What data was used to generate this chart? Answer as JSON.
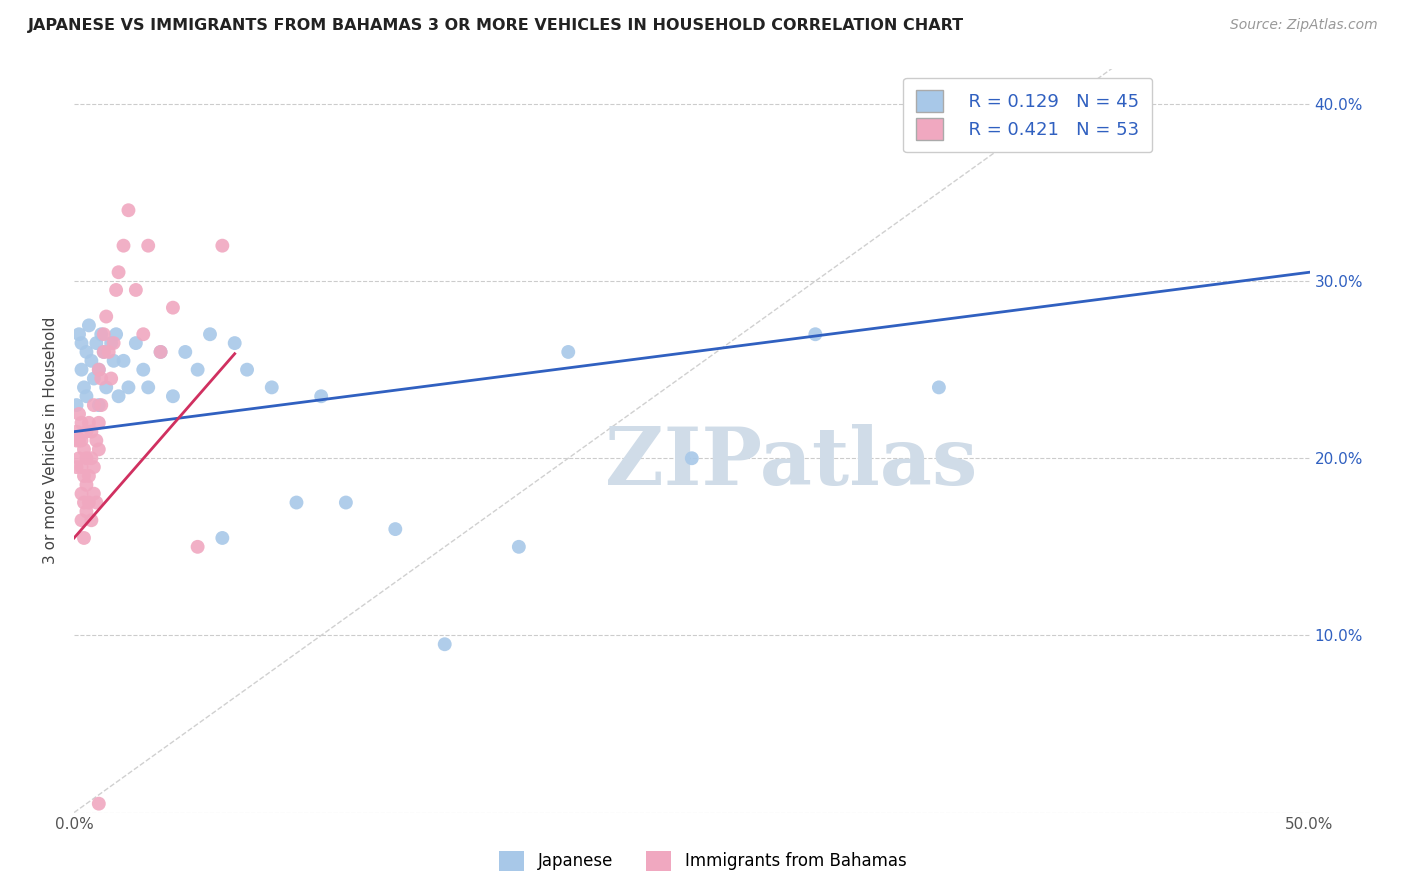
{
  "title": "JAPANESE VS IMMIGRANTS FROM BAHAMAS 3 OR MORE VEHICLES IN HOUSEHOLD CORRELATION CHART",
  "source": "Source: ZipAtlas.com",
  "ylabel": "3 or more Vehicles in Household",
  "xlim": [
    0.0,
    0.5
  ],
  "ylim": [
    0.0,
    0.42
  ],
  "xticks": [
    0.0,
    0.1,
    0.2,
    0.3,
    0.4,
    0.5
  ],
  "xticklabels": [
    "0.0%",
    "",
    "",
    "",
    "",
    "50.0%"
  ],
  "yticks": [
    0.0,
    0.1,
    0.2,
    0.3,
    0.4
  ],
  "yticklabels_left": [
    "",
    "",
    "",
    "",
    ""
  ],
  "yticklabels_right": [
    "",
    "10.0%",
    "20.0%",
    "30.0%",
    "40.0%"
  ],
  "grid_color": "#cccccc",
  "watermark": "ZIPatlas",
  "legend_R1": "R = 0.129",
  "legend_N1": "N = 45",
  "legend_R2": "R = 0.421",
  "legend_N2": "N = 53",
  "japanese_color": "#a8c8e8",
  "bahamas_color": "#f0a8c0",
  "japanese_line_color": "#3060c0",
  "bahamas_line_color": "#d03060",
  "diagonal_color": "#d0d0d0",
  "scatter_size": 100,
  "japanese_x": [
    0.001,
    0.002,
    0.003,
    0.003,
    0.004,
    0.005,
    0.005,
    0.006,
    0.007,
    0.008,
    0.009,
    0.01,
    0.01,
    0.011,
    0.012,
    0.013,
    0.015,
    0.016,
    0.017,
    0.018,
    0.02,
    0.022,
    0.025,
    0.028,
    0.03,
    0.035,
    0.04,
    0.045,
    0.05,
    0.055,
    0.06,
    0.065,
    0.07,
    0.08,
    0.09,
    0.1,
    0.11,
    0.13,
    0.15,
    0.18,
    0.2,
    0.25,
    0.3,
    0.35,
    0.43
  ],
  "japanese_y": [
    0.23,
    0.27,
    0.25,
    0.265,
    0.24,
    0.235,
    0.26,
    0.275,
    0.255,
    0.245,
    0.265,
    0.23,
    0.25,
    0.27,
    0.26,
    0.24,
    0.265,
    0.255,
    0.27,
    0.235,
    0.255,
    0.24,
    0.265,
    0.25,
    0.24,
    0.26,
    0.235,
    0.26,
    0.25,
    0.27,
    0.155,
    0.265,
    0.25,
    0.24,
    0.175,
    0.235,
    0.175,
    0.16,
    0.095,
    0.15,
    0.26,
    0.2,
    0.27,
    0.24,
    0.385
  ],
  "bahamas_x": [
    0.001,
    0.001,
    0.001,
    0.002,
    0.002,
    0.002,
    0.003,
    0.003,
    0.003,
    0.003,
    0.003,
    0.004,
    0.004,
    0.004,
    0.004,
    0.005,
    0.005,
    0.005,
    0.005,
    0.006,
    0.006,
    0.006,
    0.007,
    0.007,
    0.007,
    0.008,
    0.008,
    0.008,
    0.009,
    0.009,
    0.01,
    0.01,
    0.01,
    0.011,
    0.011,
    0.012,
    0.012,
    0.013,
    0.014,
    0.015,
    0.016,
    0.017,
    0.018,
    0.02,
    0.022,
    0.025,
    0.028,
    0.03,
    0.035,
    0.04,
    0.05,
    0.06,
    0.01
  ],
  "bahamas_y": [
    0.21,
    0.195,
    0.215,
    0.2,
    0.21,
    0.225,
    0.165,
    0.18,
    0.195,
    0.21,
    0.22,
    0.155,
    0.175,
    0.19,
    0.205,
    0.17,
    0.185,
    0.2,
    0.215,
    0.175,
    0.19,
    0.22,
    0.165,
    0.2,
    0.215,
    0.18,
    0.195,
    0.23,
    0.175,
    0.21,
    0.205,
    0.22,
    0.25,
    0.23,
    0.245,
    0.26,
    0.27,
    0.28,
    0.26,
    0.245,
    0.265,
    0.295,
    0.305,
    0.32,
    0.34,
    0.295,
    0.27,
    0.32,
    0.26,
    0.285,
    0.15,
    0.32,
    0.005
  ],
  "reg_japanese": {
    "slope": 0.18,
    "intercept": 0.215
  },
  "reg_bahamas": {
    "slope": 1.6,
    "intercept": 0.155
  }
}
